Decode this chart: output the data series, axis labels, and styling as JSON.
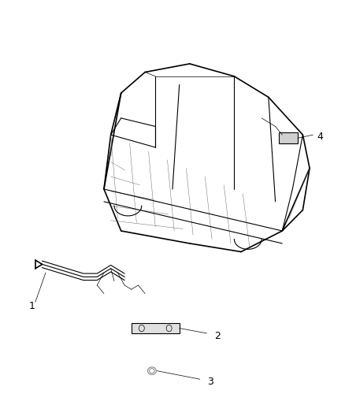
{
  "title": "",
  "background_color": "#ffffff",
  "line_color": "#000000",
  "callout_color": "#000000",
  "callout_numbers": [
    "1",
    "2",
    "3",
    "4"
  ],
  "figsize": [
    4.38,
    5.33
  ],
  "dpi": 100
}
